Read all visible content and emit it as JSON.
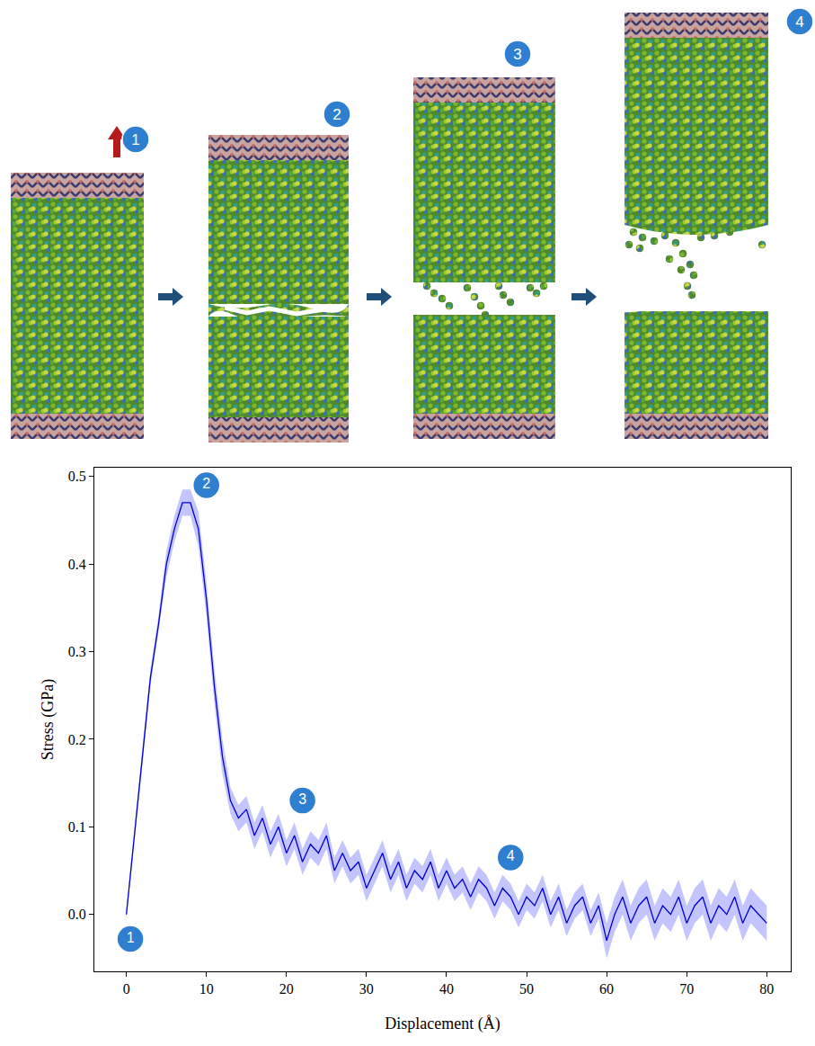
{
  "chart_data": {
    "type": "line",
    "xlabel": "Displacement (Å)",
    "ylabel": "Stress (GPa)",
    "color": "#0000cd",
    "x": [
      0,
      1,
      2,
      3,
      4,
      5,
      6,
      7,
      8,
      9,
      10,
      11,
      12,
      13,
      14,
      15,
      16,
      17,
      18,
      19,
      20,
      21,
      22,
      23,
      24,
      25,
      26,
      27,
      28,
      29,
      30,
      31,
      32,
      33,
      34,
      35,
      36,
      37,
      38,
      39,
      40,
      41,
      42,
      43,
      44,
      45,
      46,
      47,
      48,
      49,
      50,
      51,
      52,
      53,
      54,
      55,
      56,
      57,
      58,
      59,
      60,
      61,
      62,
      63,
      64,
      65,
      66,
      67,
      68,
      69,
      70,
      71,
      72,
      73,
      74,
      75,
      76,
      77,
      78,
      79,
      80
    ],
    "values": [
      0.0,
      0.09,
      0.18,
      0.27,
      0.33,
      0.4,
      0.44,
      0.47,
      0.47,
      0.44,
      0.36,
      0.26,
      0.18,
      0.13,
      0.11,
      0.12,
      0.09,
      0.11,
      0.08,
      0.1,
      0.07,
      0.09,
      0.06,
      0.08,
      0.07,
      0.09,
      0.05,
      0.07,
      0.05,
      0.06,
      0.03,
      0.05,
      0.07,
      0.04,
      0.06,
      0.03,
      0.05,
      0.04,
      0.06,
      0.03,
      0.05,
      0.03,
      0.04,
      0.02,
      0.04,
      0.03,
      0.01,
      0.03,
      0.02,
      0.0,
      0.02,
      0.01,
      0.03,
      0.0,
      0.02,
      -0.01,
      0.01,
      0.02,
      -0.01,
      0.01,
      -0.03,
      0.0,
      0.02,
      -0.01,
      0.01,
      0.02,
      -0.01,
      0.01,
      0.0,
      0.02,
      -0.01,
      0.01,
      0.02,
      -0.01,
      0.01,
      0.0,
      0.02,
      -0.01,
      0.01,
      0.0,
      -0.01
    ],
    "error": [
      0.005,
      0.01,
      0.01,
      0.01,
      0.01,
      0.015,
      0.015,
      0.015,
      0.015,
      0.02,
      0.02,
      0.02,
      0.02,
      0.015,
      0.015,
      0.015,
      0.015,
      0.015,
      0.015,
      0.015,
      0.015,
      0.015,
      0.015,
      0.015,
      0.015,
      0.015,
      0.015,
      0.015,
      0.015,
      0.015,
      0.015,
      0.015,
      0.015,
      0.015,
      0.015,
      0.015,
      0.015,
      0.015,
      0.015,
      0.015,
      0.015,
      0.015,
      0.015,
      0.015,
      0.015,
      0.015,
      0.015,
      0.015,
      0.015,
      0.015,
      0.015,
      0.015,
      0.015,
      0.015,
      0.015,
      0.015,
      0.015,
      0.015,
      0.015,
      0.015,
      0.02,
      0.02,
      0.02,
      0.02,
      0.02,
      0.02,
      0.02,
      0.02,
      0.02,
      0.02,
      0.02,
      0.02,
      0.02,
      0.02,
      0.02,
      0.02,
      0.02,
      0.02,
      0.02,
      0.02,
      0.02
    ],
    "xlim": [
      -4,
      83
    ],
    "ylim": [
      -0.065,
      0.51
    ],
    "xticks": [
      0,
      10,
      20,
      30,
      40,
      50,
      60,
      70,
      80
    ],
    "yticks": [
      {
        "value": 0,
        "label": "0.0"
      },
      0.1,
      0.2,
      0.3,
      0.4,
      0.5
    ],
    "grid": false,
    "annotations": [
      {
        "text": "1",
        "x": 0.5,
        "y": -0.028
      },
      {
        "text": "2",
        "x": 10,
        "y": 0.49
      },
      {
        "text": "3",
        "x": 22,
        "y": 0.13
      },
      {
        "text": "4",
        "x": 48,
        "y": 0.065
      }
    ]
  },
  "snapshots": {
    "labels": [
      "1",
      "2",
      "3",
      "4"
    ]
  }
}
